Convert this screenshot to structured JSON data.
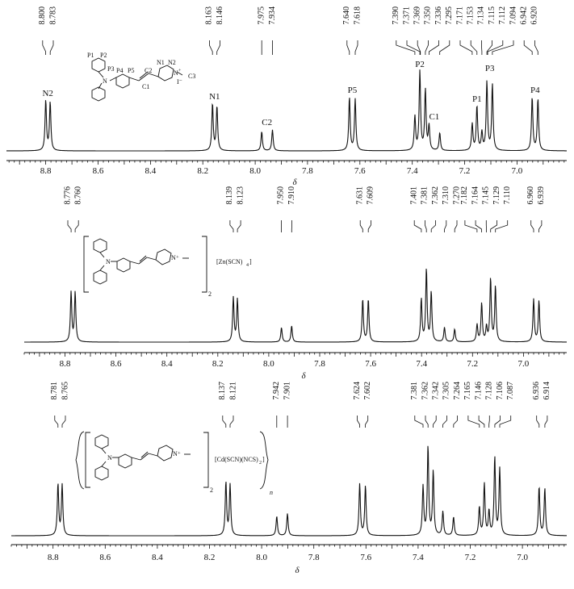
{
  "chart_data": [
    {
      "type": "line",
      "xlabel": "δ",
      "xlim": [
        8.95,
        6.81
      ],
      "x_ticks": [
        "8.8",
        "8.6",
        "8.4",
        "8.2",
        "8.0",
        "7.8",
        "7.6",
        "7.4",
        "7.2",
        "7.0"
      ],
      "peak_labels": [
        "8.800",
        "8.783",
        "8.163",
        "8.146",
        "7.975",
        "7.934",
        "7.640",
        "7.618",
        "7.390",
        "7.371",
        "7.369",
        "7.350",
        "7.336",
        "7.295",
        "7.171",
        "7.153",
        "7.134",
        "7.115",
        "7.112",
        "7.094",
        "6.942",
        "6.920"
      ],
      "peaks": [
        {
          "x": 8.8,
          "h": 0.62
        },
        {
          "x": 8.783,
          "h": 0.6
        },
        {
          "x": 8.163,
          "h": 0.58
        },
        {
          "x": 8.146,
          "h": 0.55
        },
        {
          "x": 7.975,
          "h": 0.24
        },
        {
          "x": 7.934,
          "h": 0.26
        },
        {
          "x": 7.64,
          "h": 0.66
        },
        {
          "x": 7.618,
          "h": 0.64
        },
        {
          "x": 7.39,
          "h": 0.42
        },
        {
          "x": 7.371,
          "h": 0.98
        },
        {
          "x": 7.35,
          "h": 0.75
        },
        {
          "x": 7.336,
          "h": 0.3
        },
        {
          "x": 7.295,
          "h": 0.22
        },
        {
          "x": 7.171,
          "h": 0.33
        },
        {
          "x": 7.153,
          "h": 0.55
        },
        {
          "x": 7.134,
          "h": 0.22
        },
        {
          "x": 7.115,
          "h": 0.85
        },
        {
          "x": 7.094,
          "h": 0.82
        },
        {
          "x": 6.942,
          "h": 0.66
        },
        {
          "x": 6.92,
          "h": 0.64
        }
      ],
      "assignments": [
        {
          "label": "N2",
          "x": 8.792,
          "h": 0.62
        },
        {
          "label": "N1",
          "x": 8.155,
          "h": 0.58
        },
        {
          "label": "C2",
          "x": 7.955,
          "h": 0.26
        },
        {
          "label": "P5",
          "x": 7.629,
          "h": 0.66
        },
        {
          "label": "P2",
          "x": 7.371,
          "h": 0.98
        },
        {
          "label": "C1",
          "x": 7.316,
          "h": 0.33
        },
        {
          "label": "P1",
          "x": 7.153,
          "h": 0.55
        },
        {
          "label": "P3",
          "x": 7.104,
          "h": 0.93
        },
        {
          "label": "P4",
          "x": 6.931,
          "h": 0.66
        }
      ],
      "structure_labels": {
        "atoms": [
          "P1",
          "P2",
          "P3",
          "P4",
          "P5",
          "C2",
          "C1",
          "N1",
          "N2",
          "C3",
          "N"
        ],
        "charge": "+",
        "counterion": "I⁻"
      }
    },
    {
      "type": "line",
      "xlabel": "δ",
      "xlim": [
        8.96,
        6.83
      ],
      "x_ticks": [
        "8.8",
        "8.6",
        "8.4",
        "8.2",
        "8.0",
        "7.8",
        "7.6",
        "7.4",
        "7.2",
        "7.0"
      ],
      "peak_labels": [
        "8.776",
        "8.760",
        "8.139",
        "8.123",
        "7.950",
        "7.910",
        "7.631",
        "7.609",
        "7.401",
        "7.381",
        "7.362",
        "7.310",
        "7.270",
        "7.182",
        "7.164",
        "7.145",
        "7.129",
        "7.110",
        "6.960",
        "6.939"
      ],
      "peaks": [
        {
          "x": 8.776,
          "h": 0.58
        },
        {
          "x": 8.76,
          "h": 0.58
        },
        {
          "x": 8.139,
          "h": 0.52
        },
        {
          "x": 8.123,
          "h": 0.5
        },
        {
          "x": 7.95,
          "h": 0.17
        },
        {
          "x": 7.91,
          "h": 0.19
        },
        {
          "x": 7.631,
          "h": 0.5
        },
        {
          "x": 7.609,
          "h": 0.5
        },
        {
          "x": 7.401,
          "h": 0.5
        },
        {
          "x": 7.381,
          "h": 0.85
        },
        {
          "x": 7.362,
          "h": 0.58
        },
        {
          "x": 7.31,
          "h": 0.17
        },
        {
          "x": 7.27,
          "h": 0.15
        },
        {
          "x": 7.182,
          "h": 0.2
        },
        {
          "x": 7.164,
          "h": 0.45
        },
        {
          "x": 7.145,
          "h": 0.17
        },
        {
          "x": 7.129,
          "h": 0.74
        },
        {
          "x": 7.11,
          "h": 0.65
        },
        {
          "x": 6.96,
          "h": 0.5
        },
        {
          "x": 6.939,
          "h": 0.48
        }
      ],
      "structure_labels": {
        "charge": "N⁺",
        "subscript": "2",
        "anion": "[Zn(SCN)",
        "anion_sub": "4",
        "anion_end": "]"
      }
    },
    {
      "type": "line",
      "xlabel": "δ",
      "xlim": [
        8.96,
        6.83
      ],
      "x_ticks": [
        "8.8",
        "8.6",
        "8.4",
        "8.2",
        "8.0",
        "7.8",
        "7.6",
        "7.4",
        "7.2",
        "7.0"
      ],
      "peak_labels": [
        "8.781",
        "8.765",
        "8.137",
        "8.121",
        "7.942",
        "7.901",
        "7.624",
        "7.602",
        "7.381",
        "7.362",
        "7.342",
        "7.305",
        "7.264",
        "7.165",
        "7.146",
        "7.128",
        "7.106",
        "7.087",
        "6.936",
        "6.914"
      ],
      "peaks": [
        {
          "x": 8.781,
          "h": 0.58
        },
        {
          "x": 8.765,
          "h": 0.57
        },
        {
          "x": 8.137,
          "h": 0.6
        },
        {
          "x": 8.121,
          "h": 0.57
        },
        {
          "x": 7.942,
          "h": 0.22
        },
        {
          "x": 7.901,
          "h": 0.25
        },
        {
          "x": 7.624,
          "h": 0.58
        },
        {
          "x": 7.602,
          "h": 0.56
        },
        {
          "x": 7.381,
          "h": 0.55
        },
        {
          "x": 7.362,
          "h": 1.0
        },
        {
          "x": 7.342,
          "h": 0.72
        },
        {
          "x": 7.305,
          "h": 0.27
        },
        {
          "x": 7.264,
          "h": 0.21
        },
        {
          "x": 7.165,
          "h": 0.32
        },
        {
          "x": 7.146,
          "h": 0.58
        },
        {
          "x": 7.128,
          "h": 0.27
        },
        {
          "x": 7.106,
          "h": 0.88
        },
        {
          "x": 7.087,
          "h": 0.75
        },
        {
          "x": 6.936,
          "h": 0.55
        },
        {
          "x": 6.914,
          "h": 0.53
        }
      ],
      "structure_labels": {
        "charge": "N⁺",
        "subscript": "2",
        "anion": "[Cd(SCN)(NCS)",
        "anion_sub": "2",
        "anion_end": "]",
        "polymer": "n"
      }
    }
  ]
}
